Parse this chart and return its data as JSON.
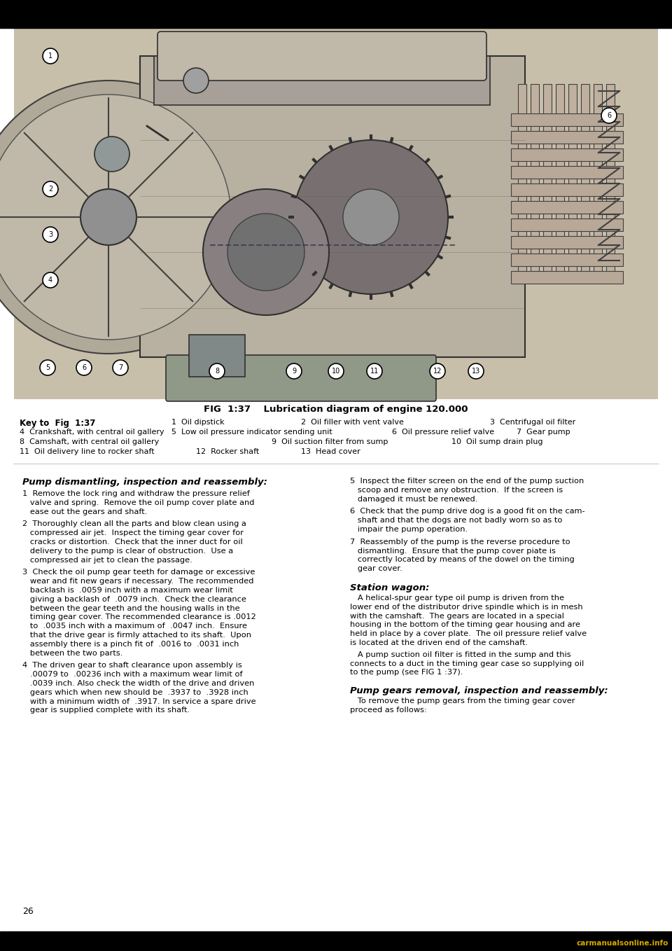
{
  "bg_color": "#ffffff",
  "page_width": 9.6,
  "page_height": 13.58,
  "fig_caption": "FIG  1:37    Lubrication diagram of engine 120.000",
  "key_title": "Key to  Fig  1:37",
  "section_title_1": "Pump dismantling, inspection and reassembly:",
  "section_body_left": [
    "1  Remove the lock ring and withdraw the pressure relief\n   valve and spring.  Remove the oil pump cover plate and\n   ease out the gears and shaft.",
    "2  Thoroughly clean all the parts and blow clean using a\n   compressed air jet.  Inspect the timing gear cover for\n   cracks or distortion.  Check that the inner duct for oil\n   delivery to the pump is clear of obstruction.  Use a\n   compressed air jet to clean the passage.",
    "3  Check the oil pump gear teeth for damage or excessive\n   wear and fit new gears if necessary.  The recommended\n   backlash is  .0059 inch with a maximum wear limit\n   giving a backlash of  .0079 inch.  Check the clearance\n   between the gear teeth and the housing walls in the\n   timing gear cover. The recommended clearance is .0012\n   to  .0035 inch with a maximum of  .0047 inch.  Ensure\n   that the drive gear is firmly attached to its shaft.  Upon\n   assembly there is a pinch fit of  .0016 to  .0031 inch\n   between the two parts.",
    "4  The driven gear to shaft clearance upon assembly is\n   .00079 to  .00236 inch with a maximum wear limit of\n   .0039 inch. Also check the width of the drive and driven\n   gears which when new should be  .3937 to  .3928 inch\n   with a minimum width of  .3917. In service a spare drive\n   gear is supplied complete with its shaft."
  ],
  "section_body_right": [
    "5  Inspect the filter screen on the end of the pump suction\n   scoop and remove any obstruction.  If the screen is\n   damaged it must be renewed.",
    "6  Check that the pump drive dog is a good fit on the cam-\n   shaft and that the dogs are not badly worn so as to\n   impair the pump operation.",
    "7  Reassembly of the pump is the reverse procedure to\n   dismantling.  Ensure that the pump cover piate is\n   correctly located by means of the dowel on the timing\n   gear cover."
  ],
  "section_title_2": "Station wagon:",
  "station_wagon_body": [
    "   A helical-spur gear type oil pump is driven from the\nlower end of the distributor drive spindle which is in mesh\nwith the camshaft.  The gears are located in a special\nhousing in the bottom of the timing gear housing and are\nheld in place by a cover plate.  The oil pressure relief valve\nis located at the driven end of the camshaft.",
    "   A pump suction oil filter is fitted in the sump and this\nconnects to a duct in the timing gear case so supplying oil\nto the pump (see FIG 1 :37)."
  ],
  "section_title_3": "Pump gears removal, inspection and reassembly:",
  "section_body_3": "   To remove the pump gears from the timing gear cover\nproceed as follows:",
  "page_number": "26",
  "watermark": "carmanualsonline.info",
  "diagram_bg": "#d8d0c0",
  "diagram_dark": "#404040",
  "diagram_mid": "#808080",
  "diagram_light": "#c0b8a8"
}
